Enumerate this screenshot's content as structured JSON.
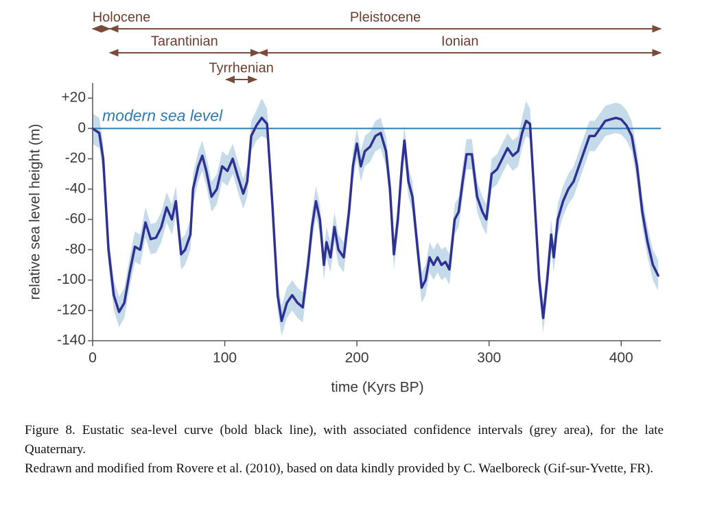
{
  "chart_data": {
    "type": "line",
    "xlabel": "time (Kyrs BP)",
    "ylabel": "relative sea level height (m)",
    "xlim": [
      0,
      430
    ],
    "xticks": [
      0,
      100,
      200,
      300,
      400
    ],
    "ylim": [
      -140,
      30
    ],
    "yticks": [
      {
        "value": 20,
        "label": "+20"
      },
      0,
      -20,
      -40,
      -60,
      -80,
      -100,
      -120,
      -140
    ],
    "reference_line": {
      "value": 0,
      "label": "modern sea level",
      "color": "#2e7ab3"
    },
    "periods": [
      [
        {
          "name": "Holocene",
          "start": 0,
          "end": 13
        },
        {
          "name": "Pleistocene",
          "start": 13,
          "end": 430
        }
      ],
      [
        {
          "name": "Tarantinian",
          "start": 13,
          "end": 126
        },
        {
          "name": "Ionian",
          "start": 126,
          "end": 430
        }
      ],
      [
        {
          "name": "Tyrrhenian",
          "start": 101,
          "end": 124
        }
      ]
    ],
    "period_color": "#7a4a3a",
    "x": [
      0,
      5,
      8,
      12,
      16,
      20,
      24,
      28,
      32,
      36,
      40,
      44,
      48,
      52,
      56,
      60,
      63,
      67,
      70,
      74,
      76,
      80,
      83,
      86,
      90,
      94,
      98,
      102,
      106,
      110,
      114,
      117,
      120,
      124,
      128,
      132,
      136,
      140,
      143,
      147,
      151,
      155,
      159,
      163,
      166,
      169,
      172,
      175,
      177,
      180,
      183,
      186,
      190,
      194,
      197,
      200,
      203,
      206,
      210,
      214,
      218,
      222,
      225,
      228,
      231,
      234,
      236,
      239,
      242,
      246,
      249,
      252,
      255,
      258,
      261,
      264,
      267,
      270,
      274,
      277,
      280,
      283,
      287,
      291,
      295,
      298,
      302,
      306,
      310,
      314,
      318,
      322,
      325,
      328,
      331,
      334,
      338,
      341,
      344,
      347,
      349,
      352,
      356,
      360,
      364,
      368,
      372,
      376,
      380,
      384,
      388,
      392,
      396,
      400,
      404,
      408,
      412,
      416,
      420,
      424,
      428
    ],
    "series": [
      {
        "color": "#2e3192",
        "band_color": "#c6dbea",
        "values": [
          0,
          -3,
          -20,
          -80,
          -110,
          -121,
          -115,
          -95,
          -78,
          -80,
          -62,
          -73,
          -72,
          -65,
          -52,
          -60,
          -48,
          -83,
          -80,
          -70,
          -40,
          -25,
          -18,
          -28,
          -45,
          -40,
          -25,
          -28,
          -20,
          -32,
          -43,
          -35,
          -5,
          2,
          7,
          3,
          -50,
          -110,
          -127,
          -115,
          -110,
          -115,
          -118,
          -90,
          -65,
          -48,
          -60,
          -90,
          -75,
          -85,
          -65,
          -80,
          -85,
          -55,
          -25,
          -10,
          -25,
          -15,
          -12,
          -5,
          -3,
          -15,
          -40,
          -83,
          -60,
          -25,
          -8,
          -35,
          -45,
          -80,
          -105,
          -100,
          -85,
          -90,
          -85,
          -90,
          -88,
          -93,
          -60,
          -55,
          -35,
          -17,
          -17,
          -45,
          -55,
          -60,
          -30,
          -27,
          -20,
          -13,
          -18,
          -15,
          -3,
          5,
          3,
          -40,
          -100,
          -125,
          -100,
          -70,
          -85,
          -60,
          -48,
          -40,
          -35,
          -25,
          -15,
          -5,
          -5,
          0,
          5,
          6,
          7,
          6,
          2,
          -5,
          -25,
          -55,
          -75,
          -90,
          -97
        ],
        "upper": [
          10,
          7,
          -10,
          -70,
          -100,
          -111,
          -105,
          -85,
          -68,
          -70,
          -52,
          -63,
          -62,
          -55,
          -42,
          -50,
          -38,
          -73,
          -70,
          -60,
          -30,
          -15,
          -8,
          -18,
          -35,
          -30,
          -15,
          -18,
          -10,
          -22,
          -33,
          -25,
          5,
          12,
          20,
          13,
          -40,
          -100,
          -117,
          -105,
          -100,
          -105,
          -108,
          -80,
          -55,
          -38,
          -50,
          -80,
          -65,
          -75,
          -55,
          -70,
          -75,
          -45,
          -15,
          0,
          -15,
          -5,
          -2,
          5,
          7,
          -5,
          -30,
          -73,
          -50,
          -15,
          2,
          -25,
          -35,
          -70,
          -95,
          -90,
          -75,
          -80,
          -75,
          -80,
          -78,
          -83,
          -50,
          -45,
          -25,
          -7,
          -7,
          -35,
          -45,
          -50,
          -20,
          -17,
          -10,
          -3,
          -8,
          -5,
          7,
          18,
          13,
          -30,
          -90,
          -115,
          -90,
          -60,
          -75,
          -50,
          -38,
          -30,
          -25,
          -15,
          -5,
          5,
          5,
          10,
          15,
          16,
          17,
          16,
          12,
          5,
          -15,
          -45,
          -65,
          -80,
          -87
        ],
        "lower": [
          -10,
          -13,
          -30,
          -90,
          -120,
          -131,
          -125,
          -105,
          -88,
          -90,
          -72,
          -83,
          -82,
          -75,
          -62,
          -70,
          -58,
          -93,
          -90,
          -80,
          -50,
          -35,
          -28,
          -38,
          -55,
          -50,
          -35,
          -38,
          -30,
          -42,
          -53,
          -45,
          -15,
          -8,
          -5,
          -7,
          -60,
          -120,
          -137,
          -125,
          -120,
          -125,
          -128,
          -100,
          -75,
          -58,
          -70,
          -100,
          -85,
          -95,
          -75,
          -90,
          -95,
          -65,
          -35,
          -20,
          -35,
          -25,
          -22,
          -15,
          -13,
          -25,
          -50,
          -93,
          -70,
          -35,
          -18,
          -45,
          -55,
          -90,
          -115,
          -110,
          -95,
          -100,
          -95,
          -100,
          -98,
          -103,
          -70,
          -65,
          -45,
          -27,
          -27,
          -55,
          -65,
          -70,
          -40,
          -37,
          -30,
          -23,
          -28,
          -25,
          -13,
          -5,
          -7,
          -50,
          -110,
          -135,
          -110,
          -80,
          -95,
          -70,
          -58,
          -50,
          -45,
          -35,
          -25,
          -15,
          -15,
          -10,
          -5,
          -4,
          -3,
          -4,
          -8,
          -15,
          -35,
          -65,
          -85,
          -100,
          -107
        ]
      }
    ]
  },
  "caption": [
    "Figure 8. Eustatic sea-level curve (bold black line), with associated confidence intervals (grey area), for the late Quaternary.",
    "Redrawn and modified from Rovere et al. (2010), based on data kindly provided by C. Waelboreck (Gif-sur-Yvette, FR)."
  ]
}
